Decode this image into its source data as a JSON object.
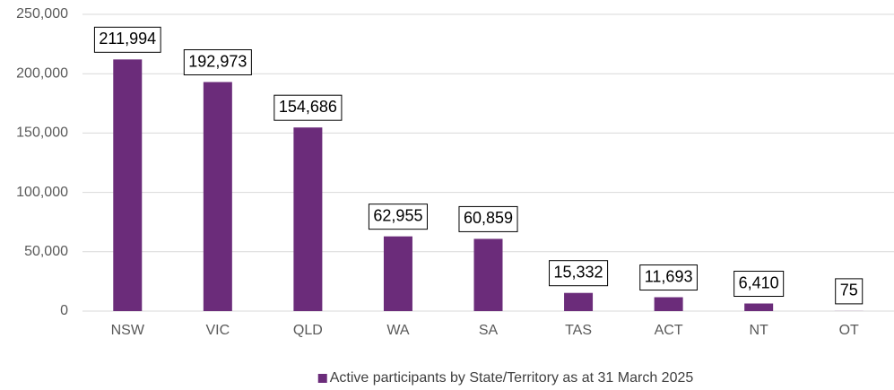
{
  "chart_data": {
    "type": "bar",
    "categories": [
      "NSW",
      "VIC",
      "QLD",
      "WA",
      "SA",
      "TAS",
      "ACT",
      "NT",
      "OT"
    ],
    "series": [
      {
        "name": "Active participants by State/Territory as at 31 March 2025",
        "color": "#6b2c7a",
        "values": [
          211994,
          192973,
          154686,
          62955,
          60859,
          15332,
          11693,
          6410,
          75
        ],
        "value_labels": [
          "211,994",
          "192,973",
          "154,686",
          "62,955",
          "60,859",
          "15,332",
          "11,693",
          "6,410",
          "75"
        ]
      }
    ],
    "ylim": [
      0,
      250000
    ],
    "yticks": [
      0,
      {
        "value": 50000,
        "label": "50,000"
      },
      {
        "value": 100000,
        "label": "100,000"
      },
      {
        "value": 150000,
        "label": "150,000"
      },
      {
        "value": 200000,
        "label": "200,000"
      },
      {
        "value": 250000,
        "label": "250,000"
      }
    ],
    "grid": true,
    "legend": "bottom"
  }
}
